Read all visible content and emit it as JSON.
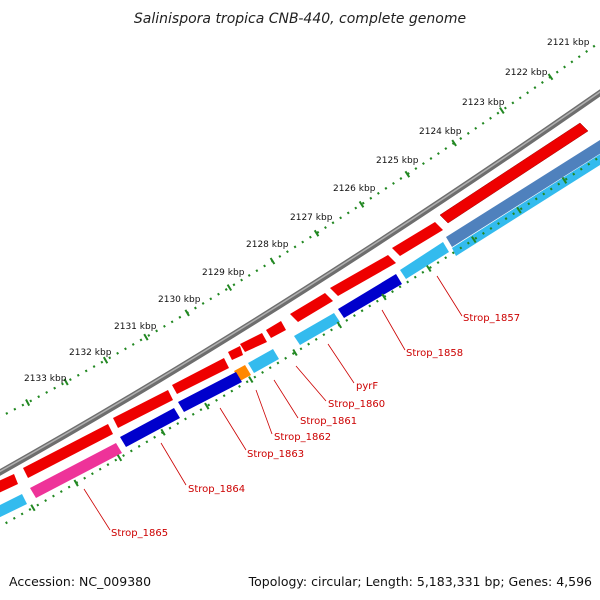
{
  "title": "Salinispora tropica CNB-440, complete genome",
  "footer": {
    "accession": "Accession: NC_009380",
    "summary": "Topology: circular; Length: 5,183,331 bp; Genes: 4,596"
  },
  "ticks": [
    {
      "label": "2121 kbp",
      "kbp": 2121
    },
    {
      "label": "2122 kbp",
      "kbp": 2122
    },
    {
      "label": "2123 kbp",
      "kbp": 2123
    },
    {
      "label": "2124 kbp",
      "kbp": 2124
    },
    {
      "label": "2125 kbp",
      "kbp": 2125
    },
    {
      "label": "2126 kbp",
      "kbp": 2126
    },
    {
      "label": "2127 kbp",
      "kbp": 2127
    },
    {
      "label": "2128 kbp",
      "kbp": 2128
    },
    {
      "label": "2129 kbp",
      "kbp": 2129
    },
    {
      "label": "2130 kbp",
      "kbp": 2130
    },
    {
      "label": "2131 kbp",
      "kbp": 2131
    },
    {
      "label": "2132 kbp",
      "kbp": 2132
    },
    {
      "label": "2133 kbp",
      "kbp": 2133
    }
  ],
  "genes": [
    {
      "name": "Strop_1857",
      "color": "#33bbee"
    },
    {
      "name": "Strop_1858",
      "color": "#0000cc"
    },
    {
      "name": "pyrF",
      "color": "#33bbee"
    },
    {
      "name": "Strop_1860",
      "color": "#33bbee"
    },
    {
      "name": "Strop_1861",
      "color": "#33bbee"
    },
    {
      "name": "Strop_1862",
      "color": "#ff8800"
    },
    {
      "name": "Strop_1863",
      "color": "#0000cc"
    },
    {
      "name": "Strop_1864",
      "color": "#0000cc"
    },
    {
      "name": "Strop_1865",
      "color": "#ee3399"
    }
  ],
  "colors": {
    "backbone": "#808080",
    "cds_forward": "#ee0000",
    "cds_reverse_blue": "#0000cc",
    "cds_reverse_cyan": "#33bbee",
    "cds_reverse_steel": "#4f81bd",
    "cds_orange": "#ff8800",
    "cds_pink": "#ee3399",
    "tick_color": "#228822",
    "label_color": "#cc0000"
  }
}
